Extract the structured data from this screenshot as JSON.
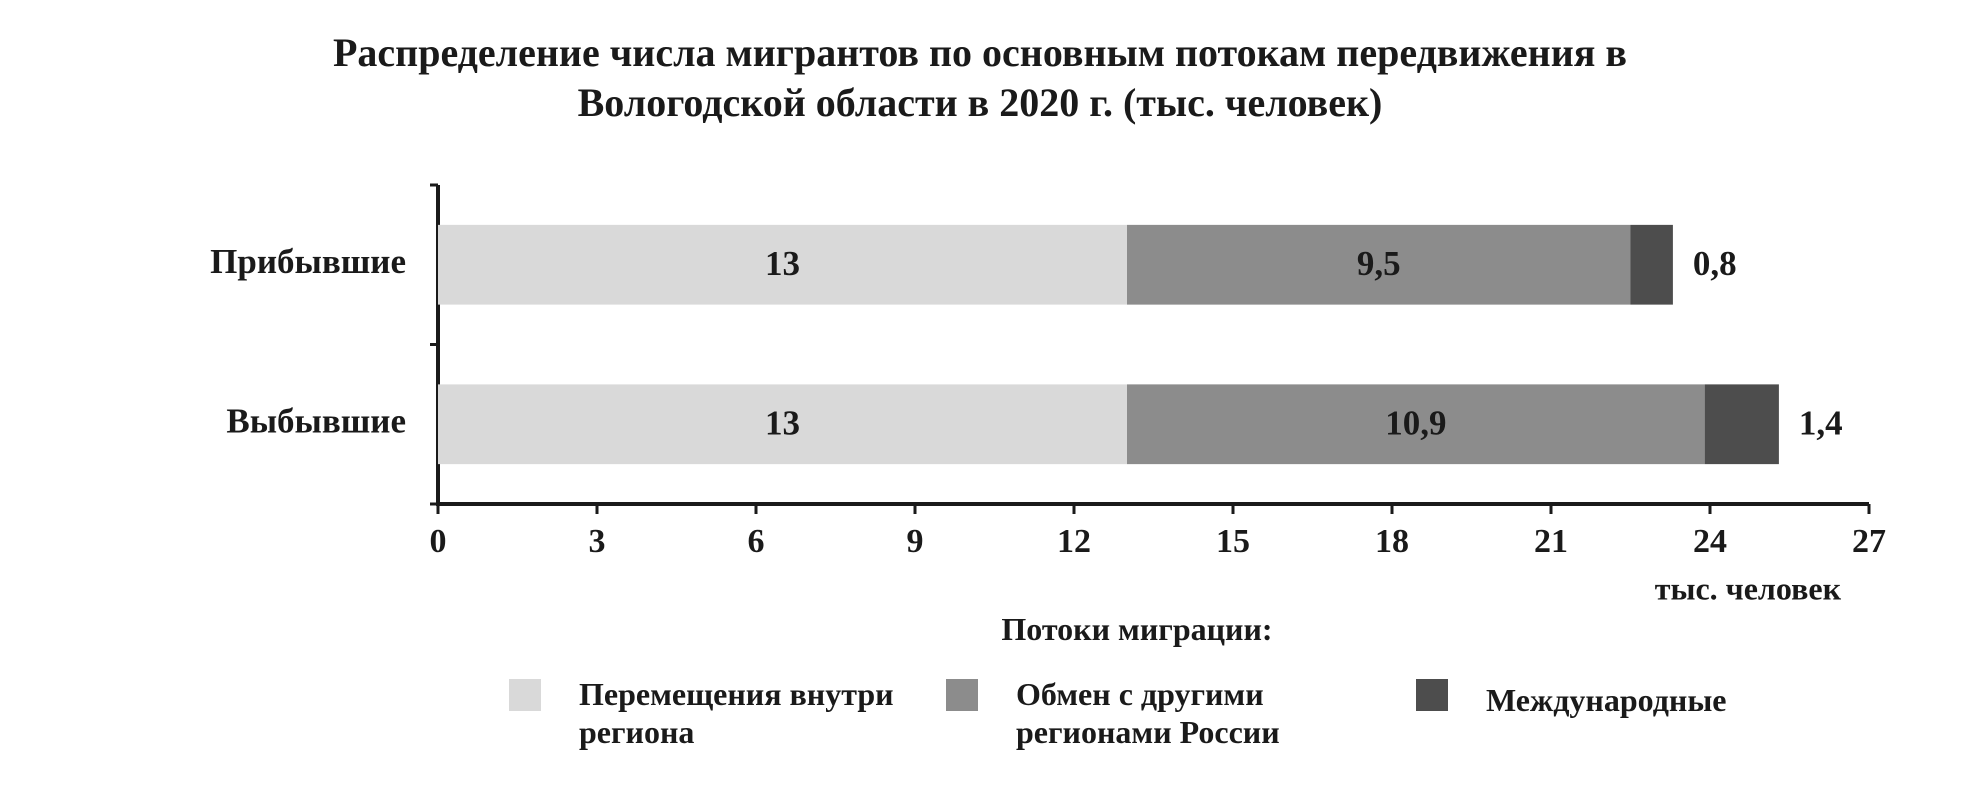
{
  "chart_data": {
    "type": "stacked-barh",
    "title": "Распределение числа мигрантов по основным потокам передвижения в Вологодской области в 2020 г. (тыс. человек)",
    "categories": [
      "Прибывшие",
      "Выбывшие"
    ],
    "series": [
      {
        "name": "Перемещения внутри региона",
        "color": "#d9d9d9",
        "values": [
          13,
          13
        ]
      },
      {
        "name": "Обмен с другими регионами России",
        "color": "#8c8c8c",
        "values": [
          9.5,
          10.9
        ],
        "value_labels": [
          "9,5",
          "10,9"
        ]
      },
      {
        "name": "Международные",
        "color": "#4d4d4d",
        "values": [
          0.8,
          1.4
        ],
        "value_labels": [
          "0,8",
          "1,4"
        ]
      }
    ],
    "xlim": [
      0,
      27
    ],
    "xticks": [
      0,
      3,
      6,
      9,
      12,
      15,
      18,
      21,
      24,
      27
    ],
    "xlabel": "тыс. человек",
    "legend_title": "Потоки миграции:",
    "legend": "bottom",
    "grid": false
  }
}
